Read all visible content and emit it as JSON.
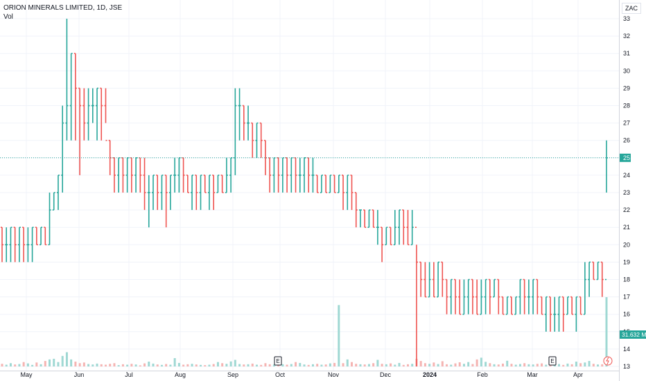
{
  "header": {
    "title": "ORION MINERALS LIMITED, 1D, JSE",
    "volume_label": "Vol",
    "currency": "ZAC"
  },
  "badges": {
    "last_price": "25",
    "last_volume": "31.632 M"
  },
  "colors": {
    "up": "#26a69a",
    "down": "#ef5350",
    "up_vol": "#9fd8d3",
    "down_vol": "#f5b4b2",
    "grid": "#f0f3fa"
  },
  "chart_data": {
    "type": "ohlc-bar",
    "title": "ORION MINERALS LIMITED, 1D, JSE",
    "ylim": [
      13,
      33
    ],
    "y_ticks": [
      13,
      14,
      15,
      16,
      17,
      18,
      19,
      20,
      21,
      22,
      23,
      24,
      25,
      26,
      27,
      28,
      29,
      30,
      31,
      32,
      33
    ],
    "x_ticks": [
      "May",
      "Jun",
      "Jul",
      "Aug",
      "Sep",
      "Oct",
      "Nov",
      "Dec",
      "2024",
      "Feb",
      "Mar",
      "Apr"
    ],
    "events": [
      "E",
      "E"
    ],
    "bars": [
      [
        21,
        21,
        19,
        20
      ],
      [
        20,
        21,
        19,
        20
      ],
      [
        20,
        21,
        19,
        21
      ],
      [
        21,
        21,
        19,
        20
      ],
      [
        20,
        21,
        19,
        21
      ],
      [
        21,
        21,
        19,
        20
      ],
      [
        20,
        21,
        19,
        20
      ],
      [
        20,
        21,
        19,
        21
      ],
      [
        21,
        21,
        20,
        20
      ],
      [
        20,
        21,
        20,
        21
      ],
      [
        21,
        21,
        20,
        20
      ],
      [
        20,
        23,
        20,
        22
      ],
      [
        22,
        23,
        22,
        23
      ],
      [
        23,
        24,
        22,
        24
      ],
      [
        24,
        28,
        23,
        27
      ],
      [
        27,
        33,
        26,
        28
      ],
      [
        28,
        31,
        26,
        31
      ],
      [
        31,
        31,
        26,
        29
      ],
      [
        29,
        29,
        24,
        28
      ],
      [
        28,
        29,
        26,
        27
      ],
      [
        27,
        29,
        26,
        28
      ],
      [
        28,
        29,
        27,
        28
      ],
      [
        28,
        29,
        26,
        29
      ],
      [
        29,
        29,
        26,
        28
      ],
      [
        28,
        29,
        27,
        26
      ],
      [
        26,
        26,
        24,
        25
      ],
      [
        25,
        25,
        23,
        24
      ],
      [
        24,
        25,
        23,
        25
      ],
      [
        25,
        25,
        23,
        24
      ],
      [
        24,
        25,
        23,
        25
      ],
      [
        25,
        25,
        23,
        24
      ],
      [
        24,
        25,
        23,
        25
      ],
      [
        25,
        25,
        23,
        24
      ],
      [
        24,
        25,
        22,
        23
      ],
      [
        23,
        24,
        21,
        23
      ],
      [
        23,
        24,
        22,
        24
      ],
      [
        24,
        24,
        22,
        23
      ],
      [
        23,
        24,
        22,
        24
      ],
      [
        24,
        24,
        21,
        23
      ],
      [
        23,
        24,
        22,
        24
      ],
      [
        24,
        25,
        23,
        24
      ],
      [
        24,
        25,
        23,
        25
      ],
      [
        25,
        25,
        23,
        24
      ],
      [
        24,
        24,
        23,
        23
      ],
      [
        23,
        24,
        22,
        24
      ],
      [
        24,
        24,
        22,
        23
      ],
      [
        23,
        24,
        22,
        24
      ],
      [
        24,
        24,
        23,
        23
      ],
      [
        23,
        24,
        22,
        24
      ],
      [
        24,
        24,
        22,
        23
      ],
      [
        23,
        24,
        23,
        24
      ],
      [
        24,
        24,
        23,
        23
      ],
      [
        23,
        25,
        23,
        24
      ],
      [
        24,
        25,
        23,
        25
      ],
      [
        25,
        29,
        24,
        28
      ],
      [
        28,
        29,
        26,
        28
      ],
      [
        28,
        28,
        26,
        27
      ],
      [
        27,
        28,
        26,
        27
      ],
      [
        27,
        27,
        25,
        26
      ],
      [
        26,
        27,
        25,
        27
      ],
      [
        27,
        27,
        25,
        26
      ],
      [
        26,
        26,
        24,
        25
      ],
      [
        25,
        25,
        23,
        24
      ],
      [
        24,
        25,
        23,
        25
      ],
      [
        25,
        25,
        23,
        24
      ],
      [
        24,
        25,
        23,
        25
      ],
      [
        25,
        25,
        23,
        24
      ],
      [
        24,
        25,
        23,
        25
      ],
      [
        25,
        25,
        23,
        24
      ],
      [
        24,
        25,
        23,
        24
      ],
      [
        24,
        25,
        23,
        25
      ],
      [
        25,
        25,
        23,
        24
      ],
      [
        24,
        25,
        23,
        24
      ],
      [
        24,
        24,
        23,
        23
      ],
      [
        23,
        24,
        23,
        24
      ],
      [
        24,
        24,
        23,
        23
      ],
      [
        23,
        24,
        23,
        24
      ],
      [
        24,
        24,
        23,
        23
      ],
      [
        23,
        24,
        23,
        24
      ],
      [
        24,
        24,
        22,
        23
      ],
      [
        23,
        24,
        22,
        24
      ],
      [
        24,
        24,
        22,
        23
      ],
      [
        23,
        23,
        21,
        22
      ],
      [
        22,
        22,
        21,
        22
      ],
      [
        22,
        22,
        21,
        21
      ],
      [
        21,
        22,
        21,
        22
      ],
      [
        22,
        22,
        21,
        21
      ],
      [
        21,
        22,
        20,
        21
      ],
      [
        21,
        21,
        19,
        20
      ],
      [
        20,
        21,
        20,
        21
      ],
      [
        21,
        21,
        20,
        20
      ],
      [
        20,
        22,
        20,
        21
      ],
      [
        21,
        22,
        20,
        22
      ],
      [
        22,
        22,
        20,
        21
      ],
      [
        21,
        22,
        20,
        20
      ],
      [
        20,
        22,
        20,
        21
      ],
      [
        21,
        20,
        13,
        19
      ],
      [
        19,
        19,
        17,
        18
      ],
      [
        18,
        19,
        17,
        17
      ],
      [
        17,
        19,
        17,
        18
      ],
      [
        18,
        19,
        17,
        17
      ],
      [
        17,
        19,
        17,
        19
      ],
      [
        19,
        19,
        17,
        18
      ],
      [
        18,
        18,
        16,
        17
      ],
      [
        17,
        18,
        16,
        18
      ],
      [
        18,
        18,
        16,
        17
      ],
      [
        17,
        18,
        16,
        16
      ],
      [
        16,
        18,
        16,
        17
      ],
      [
        17,
        18,
        16,
        18
      ],
      [
        18,
        18,
        16,
        17
      ],
      [
        17,
        18,
        16,
        16
      ],
      [
        16,
        18,
        16,
        17
      ],
      [
        17,
        18,
        16,
        18
      ],
      [
        18,
        18,
        16,
        17
      ],
      [
        17,
        18,
        17,
        18
      ],
      [
        18,
        18,
        16,
        17
      ],
      [
        17,
        17,
        16,
        16
      ],
      [
        16,
        17,
        16,
        17
      ],
      [
        17,
        17,
        16,
        16
      ],
      [
        16,
        17,
        16,
        17
      ],
      [
        17,
        18,
        16,
        18
      ],
      [
        18,
        18,
        16,
        17
      ],
      [
        17,
        18,
        16,
        17
      ],
      [
        17,
        18,
        16,
        18
      ],
      [
        18,
        18,
        16,
        17
      ],
      [
        17,
        17,
        16,
        16
      ],
      [
        16,
        17,
        15,
        17
      ],
      [
        17,
        17,
        15,
        16
      ],
      [
        16,
        17,
        15,
        16
      ],
      [
        16,
        17,
        15,
        17
      ],
      [
        17,
        17,
        15,
        16
      ],
      [
        16,
        17,
        16,
        17
      ],
      [
        17,
        17,
        16,
        16
      ],
      [
        16,
        17,
        15,
        17
      ],
      [
        17,
        17,
        16,
        16
      ],
      [
        16,
        19,
        16,
        18
      ],
      [
        18,
        19,
        17,
        19
      ],
      [
        19,
        19,
        18,
        18
      ],
      [
        18,
        19,
        18,
        19
      ],
      [
        19,
        19,
        17,
        18
      ],
      [
        18,
        26,
        23,
        25
      ]
    ],
    "volume": [
      1.2,
      0.8,
      1.5,
      0.9,
      1.1,
      2.0,
      1.4,
      0.7,
      1.8,
      1.0,
      2.5,
      3.2,
      3.5,
      2.0,
      4.8,
      6.5,
      3.2,
      2.2,
      1.5,
      1.8,
      1.1,
      0.9,
      1.3,
      1.0,
      0.8,
      1.2,
      1.5,
      0.6,
      1.0,
      0.8,
      1.2,
      0.9,
      0.5,
      1.4,
      2.2,
      1.3,
      0.9,
      0.7,
      1.1,
      0.8,
      3.8,
      1.6,
      0.8,
      1.0,
      1.2,
      0.9,
      0.7,
      0.6,
      0.8,
      1.1,
      2.0,
      1.5,
      1.2,
      2.3,
      3.0,
      1.1,
      0.9,
      1.0,
      1.3,
      0.8,
      0.7,
      1.5,
      1.0,
      0.9,
      1.4,
      1.0,
      0.8,
      1.1,
      2.0,
      1.6,
      0.9,
      0.7,
      1.0,
      1.2,
      0.8,
      0.9,
      1.4,
      1.6,
      28.0,
      1.5,
      3.2,
      2.0,
      1.2,
      1.0,
      0.9,
      1.1,
      1.5,
      3.0,
      1.2,
      1.0,
      1.4,
      0.8,
      1.6,
      0.7,
      1.0,
      1.2,
      3.5,
      2.5,
      1.5,
      1.2,
      1.8,
      1.1,
      2.4,
      1.0,
      0.8,
      1.4,
      1.9,
      1.2,
      2.0,
      1.1,
      3.2,
      4.0,
      2.1,
      1.5,
      1.0,
      0.9,
      1.3,
      2.6,
      1.2,
      0.8,
      1.1,
      1.5,
      1.0,
      0.9,
      1.2,
      1.4,
      0.8,
      1.6,
      1.0,
      1.1,
      0.7,
      1.3,
      1.0,
      2.2,
      1.5,
      1.8,
      2.5,
      1.2,
      0.9,
      1.0,
      31.6
    ]
  }
}
